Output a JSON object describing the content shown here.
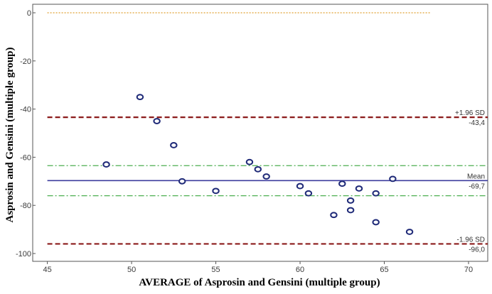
{
  "chart_data": {
    "type": "scatter",
    "title": "",
    "xlabel": "AVERAGE of Asprosin and Gensini (multiple group)",
    "ylabel": "Asprosin and Gensini (multiple group)",
    "xlim": [
      45,
      70
    ],
    "ylim": [
      -100,
      0
    ],
    "x_ticks": [
      45,
      50,
      55,
      60,
      65,
      70
    ],
    "y_ticks": [
      0,
      -20,
      -40,
      -60,
      -80,
      -100
    ],
    "x_tick_labels": [
      "45",
      "50",
      "55",
      "60",
      "65",
      "70"
    ],
    "y_tick_labels": [
      "0",
      "-20",
      "-40",
      "-60",
      "-80",
      "-100"
    ],
    "points": [
      {
        "x": 48.5,
        "y": -63
      },
      {
        "x": 50.5,
        "y": -35
      },
      {
        "x": 51.5,
        "y": -45
      },
      {
        "x": 52.5,
        "y": -55
      },
      {
        "x": 53.0,
        "y": -70
      },
      {
        "x": 55.0,
        "y": -74
      },
      {
        "x": 57.0,
        "y": -62
      },
      {
        "x": 57.5,
        "y": -65
      },
      {
        "x": 58.0,
        "y": -68
      },
      {
        "x": 60.0,
        "y": -72
      },
      {
        "x": 60.5,
        "y": -75
      },
      {
        "x": 62.0,
        "y": -84
      },
      {
        "x": 62.5,
        "y": -71
      },
      {
        "x": 63.0,
        "y": -78
      },
      {
        "x": 63.0,
        "y": -82
      },
      {
        "x": 63.5,
        "y": -73
      },
      {
        "x": 64.5,
        "y": -75
      },
      {
        "x": 64.5,
        "y": -87
      },
      {
        "x": 65.5,
        "y": -69
      },
      {
        "x": 66.5,
        "y": -91
      }
    ],
    "reference_lines": [
      {
        "id": "zero",
        "y": 0,
        "label_top": "",
        "label_bottom": "",
        "color": "#e0a030",
        "style": "dotted"
      },
      {
        "id": "upper-loa",
        "y": -43.4,
        "label_top": "+1.96 SD",
        "label_bottom": "-43,4",
        "color": "#8b1a1a",
        "style": "dashed"
      },
      {
        "id": "mean-ci-upper",
        "y": -63.5,
        "label_top": "",
        "label_bottom": "",
        "color": "#4caf50",
        "style": "dashdot"
      },
      {
        "id": "mean",
        "y": -69.7,
        "label_top": "Mean",
        "label_bottom": "-69,7",
        "color": "#3c3c9e",
        "style": "solid"
      },
      {
        "id": "mean-ci-lower",
        "y": -76,
        "label_top": "",
        "label_bottom": "",
        "color": "#4caf50",
        "style": "dashdot"
      },
      {
        "id": "lower-loa",
        "y": -96.0,
        "label_top": "-1.96 SD",
        "label_bottom": "-96,0",
        "color": "#8b1a1a",
        "style": "dashed"
      }
    ],
    "point_color": "#1f2a78",
    "grid": false
  }
}
